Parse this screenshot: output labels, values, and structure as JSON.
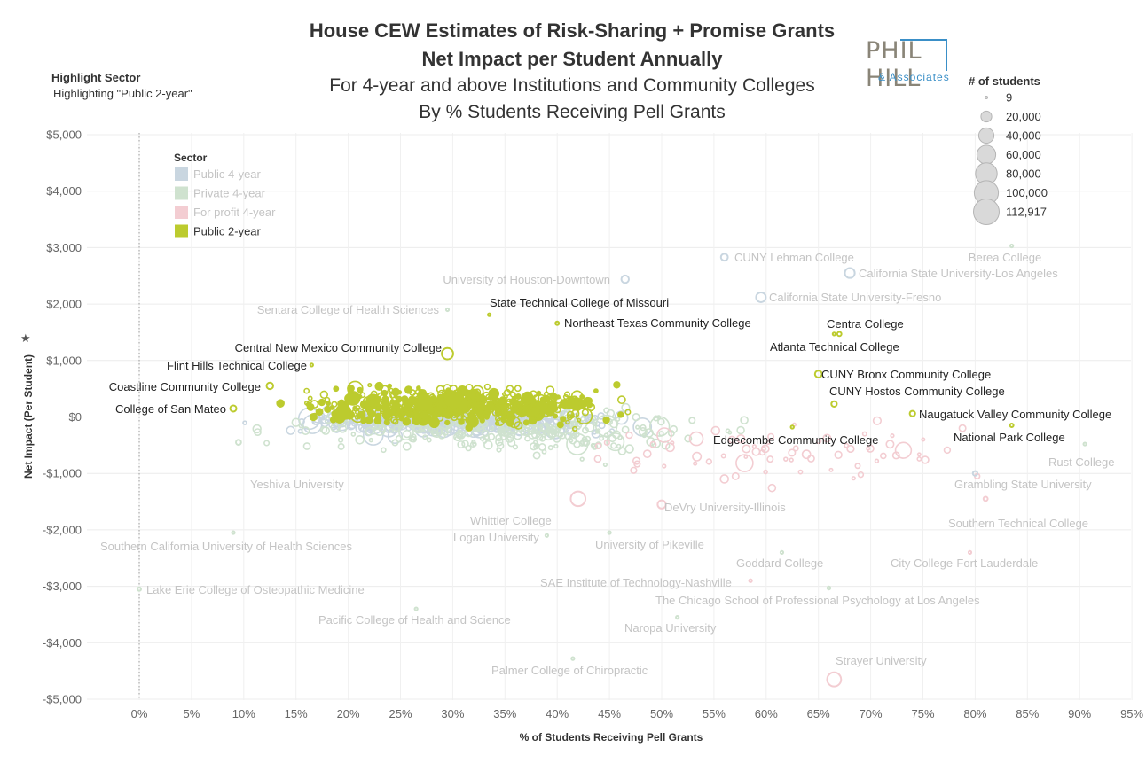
{
  "header": {
    "title1": "House CEW Estimates of Risk-Sharing + Promise Grants",
    "title2": "Net Impact per Student Annually",
    "title3": "For 4-year and above Institutions and Community Colleges",
    "title4": "By % Students Receiving Pell Grants"
  },
  "highlight": {
    "label": "Highlight Sector",
    "value": "Highlighting \"Public 2-year\""
  },
  "logo": {
    "main": "PHIL HILL",
    "sub": "& Associates"
  },
  "colors": {
    "public4": "#c9d6e0",
    "private4": "#cfe2cf",
    "forprofit4": "#f3cdd2",
    "public2": "#bccb2e"
  },
  "size_legend": {
    "title": "# of students",
    "entries": [
      {
        "label": "9",
        "students": 9
      },
      {
        "label": "20,000",
        "students": 20000
      },
      {
        "label": "40,000",
        "students": 40000
      },
      {
        "label": "60,000",
        "students": 60000
      },
      {
        "label": "80,000",
        "students": 80000
      },
      {
        "label": "100,000",
        "students": 100000
      },
      {
        "label": "112,917",
        "students": 112917
      }
    ]
  },
  "chart_data": {
    "type": "scatter",
    "title": "House CEW Estimates of Risk-Sharing + Promise Grants",
    "subtitle": "Net Impact per Student Annually",
    "xlabel": "% of Students Receiving Pell Grants",
    "ylabel": "Net Impact (Per Student)",
    "xlim": [
      -5,
      95
    ],
    "ylim": [
      -5150,
      5000
    ],
    "x_ticks": [
      0,
      5,
      10,
      15,
      20,
      25,
      30,
      35,
      40,
      45,
      50,
      55,
      60,
      65,
      70,
      75,
      80,
      85,
      90,
      95
    ],
    "x_tick_labels": [
      "0%",
      "5%",
      "10%",
      "15%",
      "20%",
      "25%",
      "30%",
      "35%",
      "40%",
      "45%",
      "50%",
      "55%",
      "60%",
      "65%",
      "70%",
      "75%",
      "80%",
      "85%",
      "90%",
      "95%"
    ],
    "y_ticks": [
      5000,
      4000,
      3000,
      2000,
      1000,
      0,
      -1000,
      -2000,
      -3000,
      -4000,
      -5000
    ],
    "y_tick_labels": [
      "$5,000",
      "$4,000",
      "$3,000",
      "$2,000",
      "$1,000",
      "$0",
      "-$1,000",
      "-$2,000",
      "-$3,000",
      "-$4,000",
      "-$5,000"
    ],
    "legend": {
      "title": "Sector",
      "entries": [
        {
          "key": "public4",
          "label": "Public 4-year",
          "highlighted": false
        },
        {
          "key": "private4",
          "label": "Private 4-year",
          "highlighted": false
        },
        {
          "key": "forprofit4",
          "label": "For profit 4-year",
          "highlighted": false
        },
        {
          "key": "public2",
          "label": "Public 2-year",
          "highlighted": true
        }
      ]
    },
    "labeled_points": [
      {
        "name": "CUNY Lehman College",
        "x": 56.0,
        "y": 2830,
        "sector": "public4",
        "students": 11000
      },
      {
        "name": "Berea College",
        "x": 83.5,
        "y": 3030,
        "sector": "private4",
        "students": 1600
      },
      {
        "name": "California State University-Los Angeles",
        "x": 68.0,
        "y": 2550,
        "sector": "public4",
        "students": 23000
      },
      {
        "name": "University of Houston-Downtown",
        "x": 46.5,
        "y": 2440,
        "sector": "public4",
        "students": 13000
      },
      {
        "name": "California State University-Fresno",
        "x": 59.5,
        "y": 2120,
        "sector": "public4",
        "students": 22000
      },
      {
        "name": "Sentara College of Health Sciences",
        "x": 29.5,
        "y": 1900,
        "sector": "private4",
        "students": 500
      },
      {
        "name": "State Technical College of Missouri",
        "x": 33.5,
        "y": 1810,
        "sector": "public2",
        "students": 1500
      },
      {
        "name": "Centra College",
        "x": 66.5,
        "y": 1470,
        "sector": "public2",
        "students": 600
      },
      {
        "name": "Northeast Texas Community College",
        "x": 40.0,
        "y": 1660,
        "sector": "public2",
        "students": 3000
      },
      {
        "name": "Atlanta Technical College",
        "x": 67.0,
        "y": 1470,
        "sector": "public2",
        "students": 4000
      },
      {
        "name": "Central New Mexico Community College",
        "x": 29.5,
        "y": 1120,
        "sector": "public2",
        "students": 30000
      },
      {
        "name": "Flint Hills Technical College",
        "x": 16.5,
        "y": 920,
        "sector": "public2",
        "students": 1000
      },
      {
        "name": "CUNY Bronx Community College",
        "x": 65.0,
        "y": 760,
        "sector": "public2",
        "students": 11000
      },
      {
        "name": "Coastline Community College",
        "x": 12.5,
        "y": 550,
        "sector": "public2",
        "students": 10000
      },
      {
        "name": "CUNY Hostos Community College",
        "x": 66.5,
        "y": 230,
        "sector": "public2",
        "students": 7000
      },
      {
        "name": "College of San Mateo",
        "x": 9.0,
        "y": 150,
        "sector": "public2",
        "students": 9000
      },
      {
        "name": "Naugatuck Valley Community College",
        "x": 74.0,
        "y": 60,
        "sector": "public2",
        "students": 7000
      },
      {
        "name": "National Park College",
        "x": 83.5,
        "y": -150,
        "sector": "public2",
        "students": 3000
      },
      {
        "name": "Edgecombe Community College",
        "x": 62.5,
        "y": -180,
        "sector": "public2",
        "students": 2000
      },
      {
        "name": "Rust College",
        "x": 90.5,
        "y": -480,
        "sector": "private4",
        "students": 800
      },
      {
        "name": "Yeshiva University",
        "x": 9.5,
        "y": -450,
        "sector": "private4",
        "students": 6000
      },
      {
        "name": "Grambling State University",
        "x": 80.0,
        "y": -1000,
        "sector": "public4",
        "students": 5000
      },
      {
        "name": "DeVry University-Illinois",
        "x": 50.0,
        "y": -1550,
        "sector": "forprofit4",
        "students": 15000
      },
      {
        "name": "Whittier College",
        "x": 42.0,
        "y": -1450,
        "sector": "forprofit4",
        "students": 50000
      },
      {
        "name": "Southern Technical College",
        "x": 81.0,
        "y": -1450,
        "sector": "forprofit4",
        "students": 4000
      },
      {
        "name": "Logan University",
        "x": 39.0,
        "y": -2100,
        "sector": "private4",
        "students": 1000
      },
      {
        "name": "Southern California University of Health Sciences",
        "x": 9.0,
        "y": -2050,
        "sector": "private4",
        "students": 1000
      },
      {
        "name": "University of Pikeville",
        "x": 45.0,
        "y": -2050,
        "sector": "private4",
        "students": 1500
      },
      {
        "name": "Goddard College",
        "x": 61.5,
        "y": -2400,
        "sector": "private4",
        "students": 600
      },
      {
        "name": "City College-Fort Lauderdale",
        "x": 79.5,
        "y": -2400,
        "sector": "forprofit4",
        "students": 800
      },
      {
        "name": "SAE Institute of Technology-Nashville",
        "x": 58.5,
        "y": -2900,
        "sector": "forprofit4",
        "students": 500
      },
      {
        "name": "Lake Erie College of Osteopathic Medicine",
        "x": 0.0,
        "y": -3050,
        "sector": "private4",
        "students": 3000
      },
      {
        "name": "The Chicago School of Professional Psychology at Los Angeles",
        "x": 66.0,
        "y": -3030,
        "sector": "private4",
        "students": 2000
      },
      {
        "name": "Pacific College of Health and Science",
        "x": 26.5,
        "y": -3400,
        "sector": "private4",
        "students": 1000
      },
      {
        "name": "Naropa University",
        "x": 51.5,
        "y": -3550,
        "sector": "private4",
        "students": 900
      },
      {
        "name": "Palmer College of Chiropractic",
        "x": 41.5,
        "y": -4280,
        "sector": "private4",
        "students": 1500
      },
      {
        "name": "Strayer University",
        "x": 66.5,
        "y": -4650,
        "sector": "forprofit4",
        "students": 45000
      }
    ]
  }
}
